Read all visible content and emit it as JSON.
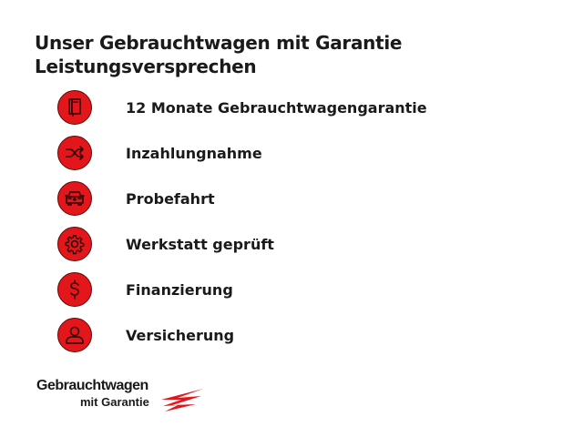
{
  "heading": {
    "line1": "Unser Gebrauchtwagen mit Garantie",
    "line2": "Leistungsversprechen"
  },
  "accent_color": "#e3161b",
  "items": [
    {
      "icon": "book-icon",
      "label": "12 Monate Gebrauchtwagengarantie"
    },
    {
      "icon": "shuffle-icon",
      "label": "Inzahlungnahme"
    },
    {
      "icon": "car-icon",
      "label": "Probefahrt"
    },
    {
      "icon": "gear-icon",
      "label": "Werkstatt geprüft"
    },
    {
      "icon": "dollar-icon",
      "label": "Finanzierung"
    },
    {
      "icon": "person-icon",
      "label": "Versicherung"
    }
  ],
  "logo": {
    "line1": "Gebrauchtwagen",
    "line2": "mit Garantie"
  }
}
